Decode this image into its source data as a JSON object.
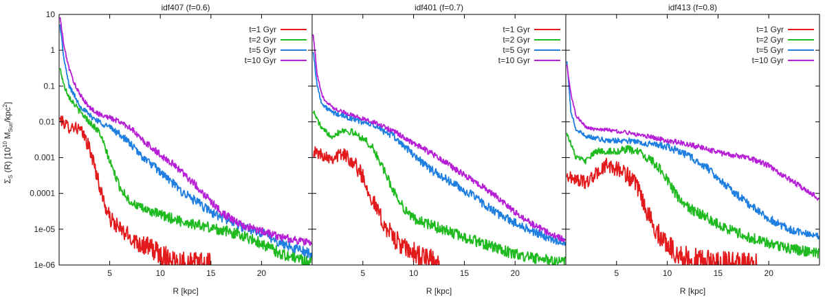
{
  "figure": {
    "ylabel_prefix": "Σ",
    "ylabel_sub": "S",
    "ylabel_paren": " (R) [10",
    "ylabel_exp": "10",
    "ylabel_msun": " M",
    "ylabel_sun": "Sun",
    "ylabel_kpc": "/kpc",
    "ylabel_two": "2",
    "ylabel_close": "]"
  },
  "chart_data": [
    {
      "type": "line",
      "title": "idf407 (f=0.6)",
      "xlabel": "R [kpc]",
      "ylabel": "Σs (R) [10^10 MSun/kpc^2]",
      "yscale": "log",
      "xlim": [
        0,
        25
      ],
      "ylim": [
        1e-06,
        10
      ],
      "xticks": [
        5,
        10,
        15,
        20
      ],
      "xtick_labels": [
        "5",
        "10",
        "15",
        "20"
      ],
      "yticks": [
        10,
        1,
        0.1,
        0.01,
        0.001,
        0.0001,
        1e-05,
        1e-06
      ],
      "ytick_labels": [
        "10",
        "1",
        "0.1",
        "0.01",
        "0.001",
        "0.0001",
        "1e-05",
        "1e-06"
      ],
      "legend_position": "top-right",
      "series": [
        {
          "name": "t=1 Gyr",
          "color": "#e31a1c",
          "noise": 0.3,
          "x": [
            0.1,
            0.5,
            1,
            1.5,
            2,
            2.5,
            3,
            3.5,
            4,
            4.5,
            5,
            6,
            7,
            8,
            9,
            10,
            11,
            12,
            13,
            15
          ],
          "y": [
            0.012,
            0.009,
            0.007,
            0.0075,
            0.006,
            0.004,
            0.0018,
            0.0006,
            0.00016,
            5e-05,
            2e-05,
            1e-05,
            6e-06,
            4e-06,
            3e-06,
            2e-06,
            1.5e-06,
            1.2e-06,
            1.1e-06,
            1e-06
          ]
        },
        {
          "name": "t=2 Gyr",
          "color": "#1fba1f",
          "noise": 0.14,
          "x": [
            0.1,
            0.5,
            1,
            2,
            3,
            4,
            5,
            6,
            7,
            8,
            10,
            12,
            15,
            18,
            20,
            22,
            25
          ],
          "y": [
            0.3,
            0.1,
            0.05,
            0.02,
            0.01,
            0.005,
            0.0008,
            0.00015,
            6e-05,
            4e-05,
            2.5e-05,
            1.7e-05,
            1.1e-05,
            7e-06,
            4e-06,
            2e-06,
            1.2e-06
          ]
        },
        {
          "name": "t=5 Gyr",
          "color": "#1e7fe0",
          "noise": 0.12,
          "x": [
            0.1,
            0.5,
            1,
            2,
            3,
            4,
            5,
            6,
            7,
            8,
            10,
            12,
            15,
            18,
            20,
            22,
            25
          ],
          "y": [
            5,
            0.5,
            0.1,
            0.03,
            0.015,
            0.01,
            0.007,
            0.0045,
            0.0025,
            0.0012,
            0.0004,
            0.00012,
            3e-05,
            1.2e-05,
            8e-06,
            4e-06,
            2e-06
          ]
        },
        {
          "name": "t=10 Gyr",
          "color": "#b71fd6",
          "noise": 0.1,
          "x": [
            0.1,
            0.5,
            1,
            1.5,
            2,
            3,
            4,
            5,
            6,
            7,
            8,
            10,
            12,
            14,
            16,
            18,
            20,
            22,
            25
          ],
          "y": [
            8,
            1.2,
            0.3,
            0.12,
            0.06,
            0.025,
            0.016,
            0.013,
            0.01,
            0.007,
            0.0035,
            0.0012,
            0.00045,
            0.00012,
            3e-05,
            1.3e-05,
            9e-06,
            6e-06,
            4e-06
          ]
        }
      ]
    },
    {
      "type": "line",
      "title": "idf401 (f=0.7)",
      "xlabel": "R [kpc]",
      "ylabel": "",
      "yscale": "log",
      "xlim": [
        0,
        25
      ],
      "ylim": [
        1e-06,
        10
      ],
      "xticks": [
        5,
        10,
        15,
        20
      ],
      "xtick_labels": [
        "5",
        "10",
        "15",
        "20"
      ],
      "legend_position": "top-right",
      "series": [
        {
          "name": "t=1 Gyr",
          "color": "#e31a1c",
          "noise": 0.3,
          "x": [
            0.1,
            1,
            2,
            3,
            4,
            5,
            6,
            7,
            8,
            9,
            10,
            11,
            12,
            13
          ],
          "y": [
            0.0015,
            0.0012,
            0.001,
            0.0013,
            0.0008,
            0.0003,
            6e-05,
            1.5e-05,
            6e-06,
            3e-06,
            2.2e-06,
            1.6e-06,
            1.2e-06,
            1e-06
          ]
        },
        {
          "name": "t=2 Gyr",
          "color": "#1fba1f",
          "noise": 0.14,
          "x": [
            0.1,
            1,
            2,
            3,
            4,
            5,
            6,
            7,
            8,
            9,
            10,
            12,
            15,
            18,
            20,
            22,
            25
          ],
          "y": [
            0.02,
            0.006,
            0.004,
            0.006,
            0.005,
            0.0035,
            0.0018,
            0.0005,
            0.00012,
            4e-05,
            2e-05,
            1.2e-05,
            6e-06,
            3e-06,
            2e-06,
            1.5e-06,
            1.2e-06
          ]
        },
        {
          "name": "t=5 Gyr",
          "color": "#1e7fe0",
          "noise": 0.11,
          "x": [
            0.1,
            0.5,
            1,
            2,
            4,
            6,
            8,
            10,
            12,
            14,
            16,
            18,
            20,
            22,
            25
          ],
          "y": [
            1,
            0.1,
            0.03,
            0.018,
            0.012,
            0.008,
            0.004,
            0.0012,
            0.0004,
            0.00018,
            8e-05,
            3e-05,
            1.5e-05,
            8e-06,
            4e-06
          ]
        },
        {
          "name": "t=10 Gyr",
          "color": "#b71fd6",
          "noise": 0.08,
          "x": [
            0.1,
            0.5,
            1,
            2,
            4,
            6,
            8,
            10,
            12,
            14,
            16,
            18,
            20,
            22,
            25
          ],
          "y": [
            3,
            0.2,
            0.05,
            0.025,
            0.015,
            0.01,
            0.0055,
            0.0025,
            0.0012,
            0.0005,
            0.00022,
            9e-05,
            3e-05,
            1.2e-05,
            5e-06
          ]
        }
      ]
    },
    {
      "type": "line",
      "title": "idf413 (f=0.8)",
      "xlabel": "R [kpc]",
      "ylabel": "",
      "yscale": "log",
      "xlim": [
        0,
        25
      ],
      "ylim": [
        1e-06,
        10
      ],
      "xticks": [
        5,
        10,
        15,
        20
      ],
      "xtick_labels": [
        "5",
        "10",
        "15",
        "20"
      ],
      "legend_position": "top-right",
      "series": [
        {
          "name": "t=1 Gyr",
          "color": "#e31a1c",
          "noise": 0.3,
          "x": [
            0.1,
            1,
            2,
            3,
            4,
            5,
            6,
            7,
            8,
            9,
            10,
            11,
            12,
            14,
            17,
            19
          ],
          "y": [
            0.0003,
            0.00025,
            0.0002,
            0.00035,
            0.0006,
            0.0005,
            0.00035,
            0.00015,
            3e-05,
            8e-06,
            4e-06,
            2e-06,
            1.5e-06,
            1.2e-06,
            1.1e-06,
            1e-06
          ]
        },
        {
          "name": "t=2 Gyr",
          "color": "#1fba1f",
          "noise": 0.14,
          "x": [
            0.1,
            1,
            2,
            3,
            4,
            5,
            6,
            7,
            8,
            9,
            10,
            11,
            12,
            14,
            16,
            18,
            20,
            22,
            25
          ],
          "y": [
            0.005,
            0.001,
            0.0008,
            0.0015,
            0.0015,
            0.0015,
            0.0017,
            0.0015,
            0.001,
            0.0006,
            0.00025,
            8e-05,
            4e-05,
            2e-05,
            1e-05,
            6e-06,
            4e-06,
            3e-06,
            2e-06
          ]
        },
        {
          "name": "t=5 Gyr",
          "color": "#1e7fe0",
          "noise": 0.1,
          "x": [
            0.1,
            0.5,
            1,
            2,
            4,
            6,
            8,
            10,
            12,
            14,
            16,
            18,
            20,
            22,
            25
          ],
          "y": [
            0.5,
            0.02,
            0.006,
            0.004,
            0.003,
            0.003,
            0.0025,
            0.002,
            0.0012,
            0.0005,
            0.00015,
            5e-05,
            2e-05,
            1e-05,
            6e-06
          ]
        },
        {
          "name": "t=10 Gyr",
          "color": "#b71fd6",
          "noise": 0.07,
          "x": [
            0.1,
            0.5,
            1,
            2,
            3,
            4,
            6,
            8,
            10,
            12,
            14,
            16,
            18,
            20,
            22,
            25
          ],
          "y": [
            0.4,
            0.06,
            0.015,
            0.007,
            0.006,
            0.006,
            0.005,
            0.004,
            0.003,
            0.0024,
            0.0017,
            0.0012,
            0.001,
            0.0006,
            0.00025,
            7e-05
          ]
        }
      ]
    }
  ]
}
